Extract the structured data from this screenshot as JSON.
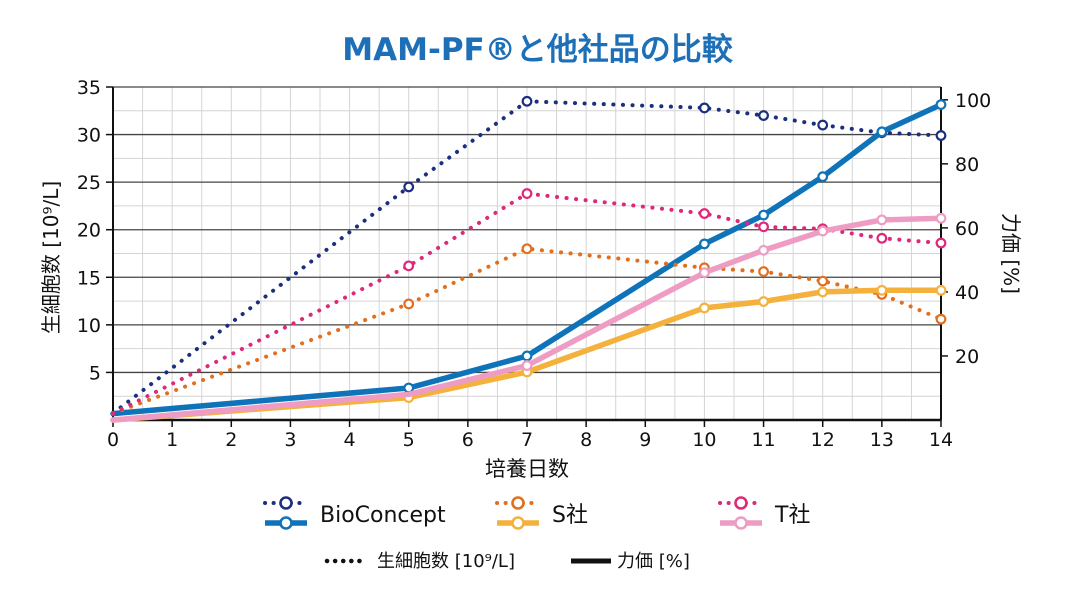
{
  "chart_data": {
    "type": "line",
    "title": "MAM-PF®と他社品の比較",
    "xlabel": "培養日数",
    "ylabel_left": "生細胞数 [10⁹/L]",
    "ylabel_right": "力価 [%]",
    "x_ticks": [
      0,
      1,
      2,
      3,
      4,
      5,
      6,
      7,
      8,
      9,
      10,
      11,
      12,
      13,
      14
    ],
    "xlim": [
      0,
      14
    ],
    "ylim_left": [
      0,
      35
    ],
    "ylim_right": [
      0,
      104
    ],
    "y_ticks_left": [
      5,
      10,
      15,
      20,
      25,
      30,
      35
    ],
    "y_ticks_right": [
      20,
      40,
      60,
      80,
      100
    ],
    "grid": true,
    "legend_position": "bottom",
    "series": [
      {
        "name": "BioConcept",
        "metric": "viable",
        "color": "#1b2f7e",
        "style": "dotted",
        "x": [
          0,
          5,
          7,
          10,
          11,
          12,
          13,
          14
        ],
        "y": [
          0.7,
          24.5,
          33.5,
          32.8,
          32.0,
          31.0,
          30.2,
          29.9
        ],
        "markers": [
          5,
          7,
          10,
          11,
          12,
          13,
          14
        ]
      },
      {
        "name": "BioConcept",
        "metric": "titer",
        "color": "#0e73b9",
        "style": "solid",
        "x": [
          0,
          5,
          7,
          10,
          11,
          12,
          13,
          14
        ],
        "y": [
          2,
          10,
          20,
          55,
          64,
          76,
          90,
          98.5
        ],
        "markers": [
          5,
          7,
          10,
          11,
          12,
          13,
          14
        ]
      },
      {
        "name": "S社",
        "metric": "viable",
        "color": "#e26f1f",
        "style": "dotted",
        "x": [
          0,
          5,
          7,
          10,
          11,
          12,
          13,
          14
        ],
        "y": [
          0.7,
          12.2,
          18.0,
          16.0,
          15.6,
          14.6,
          13.2,
          10.6
        ],
        "markers": [
          5,
          7,
          10,
          11,
          12,
          13,
          14
        ]
      },
      {
        "name": "S社",
        "metric": "titer",
        "color": "#f4b13c",
        "style": "solid",
        "x": [
          0,
          5,
          7,
          10,
          11,
          12,
          13,
          14
        ],
        "y": [
          0,
          7,
          15,
          35,
          37,
          40,
          40.5,
          40.5
        ],
        "markers": [
          5,
          7,
          10,
          11,
          12,
          13,
          14
        ]
      },
      {
        "name": "T社",
        "metric": "viable",
        "color": "#de2879",
        "style": "dotted",
        "x": [
          0,
          5,
          7,
          10,
          11,
          12,
          13,
          14
        ],
        "y": [
          0.7,
          16.2,
          23.8,
          21.7,
          20.3,
          20.1,
          19.1,
          18.6
        ],
        "markers": [
          5,
          7,
          10,
          11,
          12,
          13,
          14
        ]
      },
      {
        "name": "T社",
        "metric": "titer",
        "color": "#ef9cc4",
        "style": "solid",
        "x": [
          0,
          5,
          7,
          10,
          11,
          12,
          13,
          14
        ],
        "y": [
          0,
          8,
          17,
          46,
          53,
          59,
          62.5,
          63
        ],
        "markers": [
          7,
          10,
          11,
          12,
          13,
          14
        ]
      }
    ],
    "legend": {
      "entries": [
        {
          "name": "BioConcept",
          "dot_color": "#1b2f7e",
          "line_color": "#0e73b9"
        },
        {
          "name": "S社",
          "dot_color": "#e26f1f",
          "line_color": "#f4b13c"
        },
        {
          "name": "T社",
          "dot_color": "#de2879",
          "line_color": "#ef9cc4"
        }
      ],
      "style_key": {
        "dotted_label": "生細胞数 [10⁹/L]",
        "solid_label": "力価 [%]"
      }
    }
  }
}
